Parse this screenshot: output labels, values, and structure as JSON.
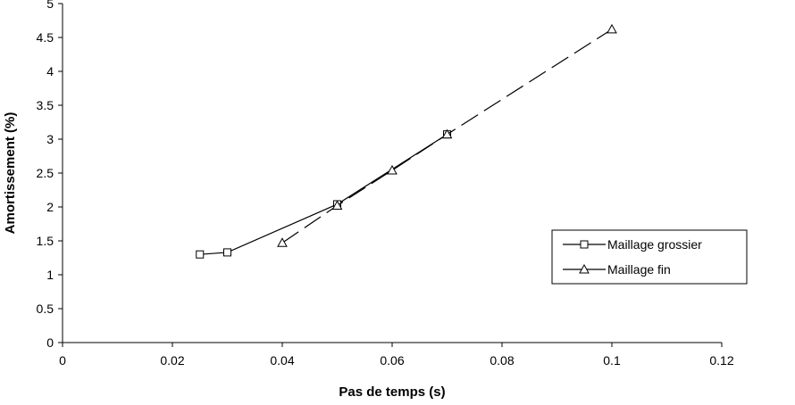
{
  "chart_data": {
    "type": "line",
    "title": "",
    "xlabel": "Pas de temps (s)",
    "ylabel": "Amortissement (%)",
    "xlim": [
      0,
      0.12
    ],
    "ylim": [
      0,
      5
    ],
    "x_ticks": [
      0,
      0.02,
      0.04,
      0.06,
      0.08,
      0.1,
      0.12
    ],
    "y_ticks": [
      0,
      0.5,
      1,
      1.5,
      2,
      2.5,
      3,
      3.5,
      4,
      4.5,
      5
    ],
    "grid": false,
    "legend_position": "right",
    "series": [
      {
        "name": "Maillage grossier",
        "marker": "square",
        "line_style": "solid",
        "color": "#000000",
        "x": [
          0.025,
          0.03,
          0.05,
          0.07
        ],
        "y": [
          1.3,
          1.33,
          2.04,
          3.07
        ]
      },
      {
        "name": "Maillage fin",
        "marker": "triangle",
        "line_style": "dashed",
        "color": "#000000",
        "x": [
          0.04,
          0.05,
          0.06,
          0.07,
          0.1
        ],
        "y": [
          1.47,
          2.02,
          2.54,
          3.07,
          4.62
        ]
      }
    ]
  }
}
